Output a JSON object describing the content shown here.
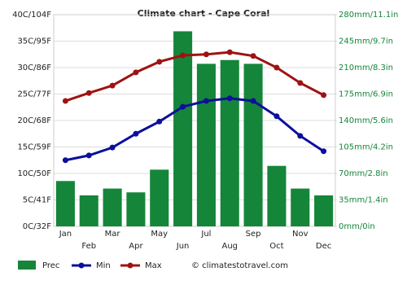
{
  "chart_data": {
    "type": "bar-line",
    "title": "Climate chart - Cape Coral",
    "categories": [
      "Jan",
      "Feb",
      "Mar",
      "Apr",
      "May",
      "Jun",
      "Jul",
      "Aug",
      "Sep",
      "Oct",
      "Nov",
      "Dec"
    ],
    "series": [
      {
        "name": "Prec",
        "color": "#15853a",
        "axis": "y2",
        "kind": "bar",
        "values": [
          60,
          41,
          50,
          45,
          75,
          258,
          215,
          220,
          215,
          80,
          50,
          41
        ]
      },
      {
        "name": "Min",
        "color": "#0b0f9c",
        "kind": "line",
        "values": [
          12.5,
          13.4,
          14.9,
          17.5,
          19.8,
          22.6,
          23.7,
          24.2,
          23.7,
          20.8,
          17.1,
          14.2
        ]
      },
      {
        "name": "Max",
        "color": "#a01212",
        "kind": "line",
        "values": [
          23.7,
          25.2,
          26.6,
          29.1,
          31.1,
          32.3,
          32.5,
          32.9,
          32.2,
          30.0,
          27.1,
          24.8
        ]
      }
    ],
    "ylim": [
      0,
      40
    ],
    "yticks": [
      {
        "value": 0,
        "label": "0C/32F"
      },
      {
        "value": 5,
        "label": "5C/41F"
      },
      {
        "value": 10,
        "label": "10C/50F"
      },
      {
        "value": 15,
        "label": "15C/59F"
      },
      {
        "value": 20,
        "label": "20C/68F"
      },
      {
        "value": 25,
        "label": "25C/77F"
      },
      {
        "value": 30,
        "label": "30C/86F"
      },
      {
        "value": 35,
        "label": "35C/95F"
      },
      {
        "value": 40,
        "label": "40C/104F"
      }
    ],
    "y2lim": [
      0,
      280
    ],
    "y2ticks": [
      {
        "value": 0,
        "label": "0mm/0in"
      },
      {
        "value": 35,
        "label": "35mm/1.4in"
      },
      {
        "value": 70,
        "label": "70mm/2.8in"
      },
      {
        "value": 105,
        "label": "105mm/4.2in"
      },
      {
        "value": 140,
        "label": "140mm/5.6in"
      },
      {
        "value": 175,
        "label": "175mm/6.9in"
      },
      {
        "value": 210,
        "label": "210mm/8.3in"
      },
      {
        "value": 245,
        "label": "245mm/9.7in"
      },
      {
        "value": 280,
        "label": "280mm/11.1in"
      }
    ],
    "y2color": "#15853a",
    "grid": true,
    "source": "© climatestotravel.com"
  }
}
